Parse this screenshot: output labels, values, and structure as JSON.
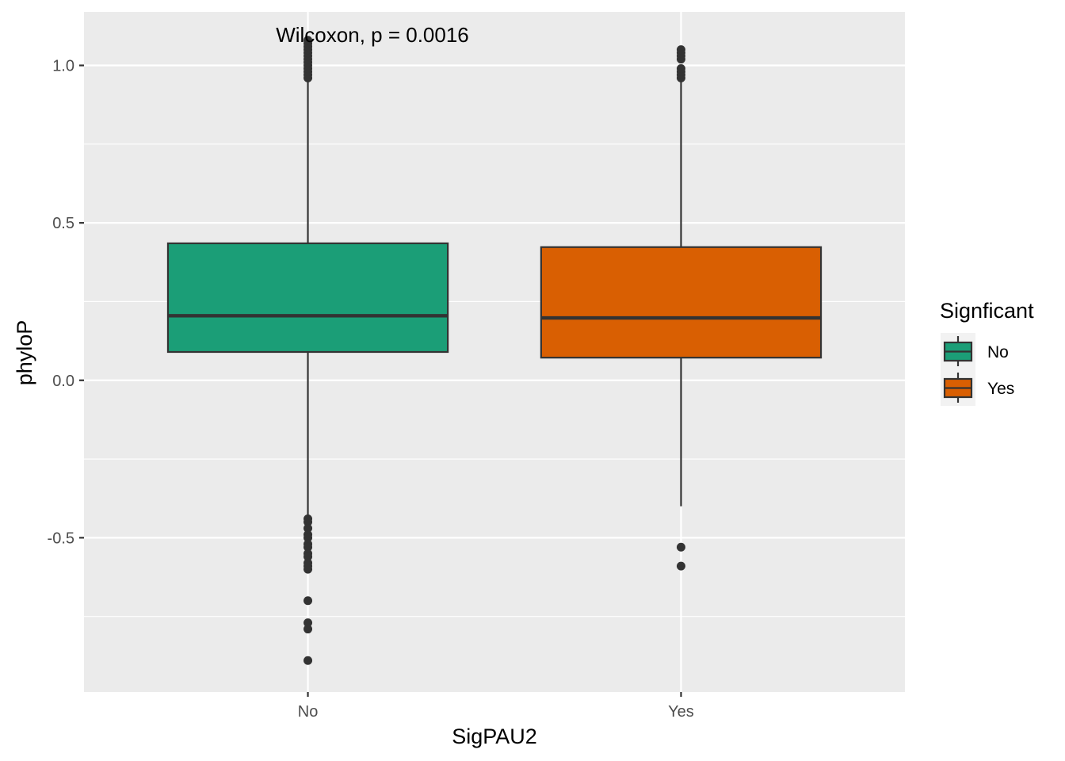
{
  "chart_data": {
    "type": "boxplot",
    "xlabel": "SigPAU2",
    "ylabel": "phyloP",
    "categories": [
      "No",
      "Yes"
    ],
    "ylim": [
      -0.99,
      1.17
    ],
    "y_ticks": [
      -0.5,
      0.0,
      0.5,
      1.0
    ],
    "y_tick_labels": [
      "-0.5",
      "0.0",
      "0.5",
      "1.0"
    ],
    "grid": true,
    "annotation": "Wilcoxon, p = 0.0016",
    "boxes": [
      {
        "category": "No",
        "fill": "#1b9e77",
        "q1": 0.09,
        "median": 0.205,
        "q3": 0.435,
        "whisker_low": -0.43,
        "whisker_high": 0.95,
        "outliers": [
          0.96,
          0.97,
          0.98,
          0.99,
          1.0,
          1.01,
          1.02,
          1.03,
          1.04,
          1.05,
          1.06,
          1.07,
          1.08,
          -0.44,
          -0.45,
          -0.47,
          -0.49,
          -0.5,
          -0.52,
          -0.53,
          -0.55,
          -0.56,
          -0.58,
          -0.59,
          -0.6,
          -0.7,
          -0.77,
          -0.79,
          -0.89
        ]
      },
      {
        "category": "Yes",
        "fill": "#d95f02",
        "q1": 0.072,
        "median": 0.198,
        "q3": 0.423,
        "whisker_low": -0.4,
        "whisker_high": 0.95,
        "outliers": [
          0.96,
          0.97,
          0.98,
          0.99,
          1.02,
          1.03,
          1.04,
          1.05,
          -0.53,
          -0.59
        ]
      }
    ],
    "legend": {
      "title": "Signficant",
      "position": "right",
      "items": [
        {
          "label": "No",
          "color": "#1b9e77"
        },
        {
          "label": "Yes",
          "color": "#d95f02"
        }
      ]
    }
  }
}
